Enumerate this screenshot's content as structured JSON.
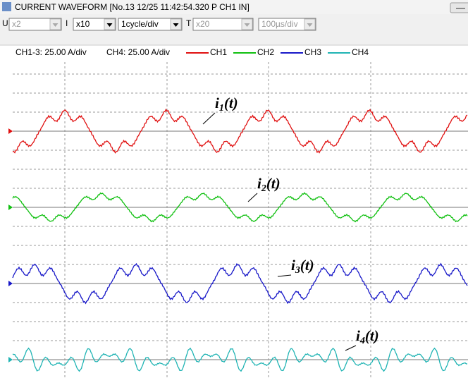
{
  "window": {
    "title": "CURRENT WAVEFORM [No.13 12/25 11:42:54.320  P  CH1  IN]"
  },
  "toolbar": [
    {
      "label": "U",
      "value": "x2",
      "enabled": false
    },
    {
      "label": "I",
      "value": "x10",
      "enabled": true
    },
    {
      "value": "1cycle/div",
      "enabled": true
    },
    {
      "label": "T",
      "value": "x20",
      "enabled": false
    },
    {
      "value": "100µs/div",
      "enabled": false
    }
  ],
  "scale": [
    "CH1-3:  25.00 A/div",
    "CH4:  25.00 A/div"
  ],
  "legend": [
    {
      "name": "CH1",
      "color": "#e01010"
    },
    {
      "name": "CH2",
      "color": "#10c010"
    },
    {
      "name": "CH3",
      "color": "#1818c8"
    },
    {
      "name": "CH4",
      "color": "#20b4b4"
    }
  ],
  "annotations": [
    {
      "symbol": "i",
      "sub": "1",
      "arg": "(t)"
    },
    {
      "symbol": "i",
      "sub": "2",
      "arg": "(t)"
    },
    {
      "symbol": "i",
      "sub": "3",
      "arg": "(t)"
    },
    {
      "symbol": "i",
      "sub": "4",
      "arg": "(t)"
    }
  ]
}
